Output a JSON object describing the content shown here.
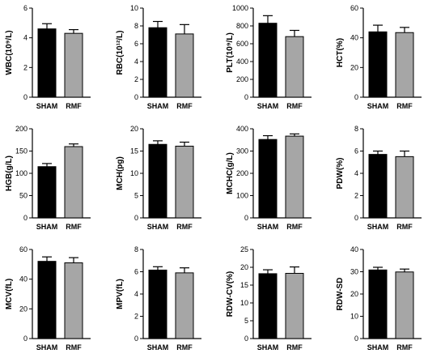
{
  "colors": {
    "sham": "#000000",
    "rmf": "#a6a6a6",
    "axis": "#000000"
  },
  "chart_data": [
    {
      "type": "bar",
      "ylabel": "WBC(10⁹/L)",
      "ylim": [
        0,
        6
      ],
      "yticks": [
        "0",
        "2",
        "4",
        "6"
      ],
      "categories": [
        "SHAM",
        "RMF"
      ],
      "values": [
        4.6,
        4.3
      ],
      "errors": [
        0.35,
        0.25
      ]
    },
    {
      "type": "bar",
      "ylabel": "RBC(10¹²/L)",
      "ylim": [
        0,
        10
      ],
      "yticks": [
        "0",
        "2",
        "4",
        "6",
        "8",
        "10"
      ],
      "categories": [
        "SHAM",
        "RMF"
      ],
      "values": [
        7.8,
        7.1
      ],
      "errors": [
        0.7,
        1.05
      ]
    },
    {
      "type": "bar",
      "ylabel": "PLT(10⁹/L)",
      "ylim": [
        0,
        1000
      ],
      "yticks": [
        "0",
        "200",
        "400",
        "600",
        "800",
        "1000"
      ],
      "categories": [
        "SHAM",
        "RMF"
      ],
      "values": [
        830,
        680
      ],
      "errors": [
        85,
        70
      ]
    },
    {
      "type": "bar",
      "ylabel": "HCT(%)",
      "ylim": [
        0,
        60
      ],
      "yticks": [
        "0",
        "20",
        "40",
        "60"
      ],
      "categories": [
        "SHAM",
        "RMF"
      ],
      "values": [
        44,
        43.5
      ],
      "errors": [
        4.5,
        3.5
      ]
    },
    {
      "type": "bar",
      "ylabel": "HGB(g/L)",
      "ylim": [
        0,
        200
      ],
      "yticks": [
        "0",
        "50",
        "100",
        "150",
        "200"
      ],
      "categories": [
        "SHAM",
        "RMF"
      ],
      "values": [
        115,
        160
      ],
      "errors": [
        7,
        6
      ]
    },
    {
      "type": "bar",
      "ylabel": "MCH(pg)",
      "ylim": [
        0,
        20
      ],
      "yticks": [
        "0",
        "5",
        "10",
        "15",
        "20"
      ],
      "categories": [
        "SHAM",
        "RMF"
      ],
      "values": [
        16.5,
        16.1
      ],
      "errors": [
        0.8,
        0.9
      ]
    },
    {
      "type": "bar",
      "ylabel": "MCHC(g/L)",
      "ylim": [
        0,
        400
      ],
      "yticks": [
        "0",
        "100",
        "200",
        "300",
        "400"
      ],
      "categories": [
        "SHAM",
        "RMF"
      ],
      "values": [
        352,
        367
      ],
      "errors": [
        17,
        10
      ]
    },
    {
      "type": "bar",
      "ylabel": "PDW(%)",
      "ylim": [
        0,
        8
      ],
      "yticks": [
        "0",
        "2",
        "4",
        "6",
        "8"
      ],
      "categories": [
        "SHAM",
        "RMF"
      ],
      "values": [
        5.7,
        5.5
      ],
      "errors": [
        0.3,
        0.5
      ]
    },
    {
      "type": "bar",
      "ylabel": "MCV(fL)",
      "ylim": [
        0,
        60
      ],
      "yticks": [
        "0",
        "20",
        "40",
        "60"
      ],
      "categories": [
        "SHAM",
        "RMF"
      ],
      "values": [
        52,
        51
      ],
      "errors": [
        3,
        3.5
      ]
    },
    {
      "type": "bar",
      "ylabel": "MPV(fL)",
      "ylim": [
        0,
        8
      ],
      "yticks": [
        "0",
        "2",
        "4",
        "6",
        "8"
      ],
      "categories": [
        "SHAM",
        "RMF"
      ],
      "values": [
        6.15,
        5.9
      ],
      "errors": [
        0.3,
        0.45
      ]
    },
    {
      "type": "bar",
      "ylabel": "RDW-CV(%)",
      "ylim": [
        0,
        25
      ],
      "yticks": [
        "0",
        "5",
        "10",
        "15",
        "20",
        "25"
      ],
      "categories": [
        "SHAM",
        "RMF"
      ],
      "values": [
        18.2,
        18.3
      ],
      "errors": [
        1.1,
        1.8
      ]
    },
    {
      "type": "bar",
      "ylabel": "RDW-SD",
      "ylim": [
        0,
        40
      ],
      "yticks": [
        "0",
        "10",
        "20",
        "30",
        "40"
      ],
      "categories": [
        "SHAM",
        "RMF"
      ],
      "values": [
        30.8,
        29.9
      ],
      "errors": [
        1.2,
        1.3
      ]
    }
  ]
}
